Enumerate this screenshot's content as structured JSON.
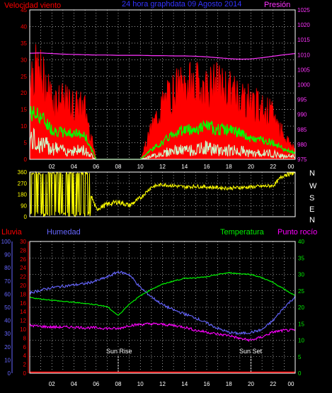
{
  "header": {
    "wind_label": "Velocidad viento",
    "title": "24 hora graphdata  09 Agosto 2014",
    "pressure_label": "Presión"
  },
  "footer_labels": {
    "rain": "Lluvia",
    "humidity": "Humedad",
    "temperature": "Temperatura",
    "dewpoint": "Punto rocío"
  },
  "markers": {
    "sunrise": "Sun Rise",
    "sunset": "Sun Set"
  },
  "direction_labels": [
    "N",
    "W",
    "S",
    "E",
    "N"
  ],
  "colors": {
    "wind_gust": "#ff0000",
    "wind_avg": "#00ff00",
    "wind_min": "#ccffcc",
    "pressure": "#ff33ff",
    "direction": "#ffff00",
    "humidity": "#6666ff",
    "temperature": "#00ee00",
    "dewpoint": "#ff00ff",
    "rain": "#ff0000",
    "grid": "#ffffff",
    "frame": "#ffffff"
  },
  "chart_data": [
    {
      "type": "line",
      "name": "wind-pressure",
      "x_ticks": [
        "02",
        "04",
        "06",
        "08",
        "10",
        "12",
        "14",
        "16",
        "18",
        "20",
        "22",
        "00"
      ],
      "x_hours": [
        0,
        1,
        2,
        3,
        4,
        5,
        6,
        7,
        8,
        9,
        10,
        11,
        12,
        13,
        14,
        15,
        16,
        17,
        18,
        19,
        20,
        21,
        22,
        23,
        24
      ],
      "y_left_ticks": [
        "0",
        "5",
        "10",
        "15",
        "20",
        "25",
        "30",
        "35",
        "40",
        "45"
      ],
      "ylim_left": [
        0,
        45
      ],
      "y_right_ticks": [
        "975",
        "980",
        "985",
        "990",
        "995",
        "1000",
        "1005",
        "1010",
        "1015",
        "1020",
        "1025"
      ],
      "ylim_right": [
        975,
        1025
      ],
      "series": [
        {
          "key": "gust",
          "values": [
            27,
            25,
            18,
            17,
            16,
            15,
            0,
            0,
            0,
            0,
            0,
            9,
            16,
            20,
            22,
            22,
            21,
            22,
            20,
            19,
            17,
            15,
            13,
            7,
            3
          ]
        },
        {
          "key": "avg",
          "values": [
            14,
            13,
            9,
            8,
            8,
            7,
            0,
            0,
            0,
            0,
            0,
            3,
            5,
            8,
            9,
            9,
            10,
            9,
            9,
            8,
            6,
            6,
            5,
            3,
            2
          ]
        },
        {
          "key": "min",
          "values": [
            7,
            5,
            4,
            3,
            3,
            3,
            0,
            0,
            0,
            0,
            0,
            1,
            2,
            3,
            3,
            3,
            4,
            3,
            3,
            3,
            2,
            2,
            2,
            1,
            1
          ]
        },
        {
          "key": "pressure",
          "values": [
            1010.5,
            1010.6,
            1010.4,
            1010.2,
            1010.1,
            1010.0,
            1009.9,
            1009.9,
            1009.8,
            1009.8,
            1009.8,
            1009.7,
            1009.7,
            1009.6,
            1009.6,
            1009.5,
            1009.3,
            1009.0,
            1008.7,
            1008.5,
            1008.6,
            1009.0,
            1009.5,
            1010.0,
            1010.4
          ]
        }
      ]
    },
    {
      "type": "line",
      "name": "wind-direction",
      "x_hours": [
        0,
        1,
        2,
        3,
        4,
        5,
        6,
        7,
        8,
        9,
        10,
        11,
        12,
        13,
        14,
        15,
        16,
        17,
        18,
        19,
        20,
        21,
        22,
        23,
        24
      ],
      "y_ticks": [
        "0",
        "90",
        "180",
        "270",
        "360"
      ],
      "ylim": [
        0,
        360
      ],
      "series": [
        {
          "key": "direction",
          "values": [
            350,
            340,
            300,
            320,
            330,
            310,
            60,
            100,
            120,
            90,
            150,
            240,
            260,
            250,
            240,
            245,
            240,
            235,
            230,
            235,
            240,
            245,
            250,
            340,
            355
          ]
        }
      ]
    },
    {
      "type": "line",
      "name": "temp-hum",
      "x_hours": [
        0,
        1,
        2,
        3,
        4,
        5,
        6,
        7,
        8,
        9,
        10,
        11,
        12,
        13,
        14,
        15,
        16,
        17,
        18,
        19,
        20,
        21,
        22,
        23,
        24
      ],
      "y_left_rain_ticks": [
        "0",
        "2",
        "4",
        "6",
        "8",
        "10",
        "12",
        "14",
        "16",
        "18",
        "20",
        "22",
        "24",
        "26",
        "28",
        "30"
      ],
      "ylim_rain": [
        0,
        30
      ],
      "y_left_hum_ticks": [
        "0",
        "10",
        "20",
        "30",
        "40",
        "50",
        "60",
        "70",
        "80",
        "90",
        "100"
      ],
      "ylim_hum": [
        0,
        100
      ],
      "y_right_ticks": [
        "0",
        "5",
        "10",
        "15",
        "20",
        "25",
        "30",
        "35",
        "40"
      ],
      "ylim_right": [
        0,
        40
      ],
      "sunrise_hour": 8.0,
      "sunset_hour": 20.0,
      "series": [
        {
          "key": "humidity",
          "values": [
            61,
            63,
            65,
            66,
            67,
            68,
            70,
            73,
            77,
            75,
            65,
            58,
            52,
            48,
            45,
            42,
            38,
            34,
            31,
            30,
            31,
            33,
            40,
            50,
            58
          ]
        },
        {
          "key": "temperature",
          "values": [
            23.0,
            22.5,
            22.2,
            21.8,
            21.5,
            21.2,
            20.8,
            20.2,
            17.5,
            21.0,
            23.5,
            25.5,
            27.0,
            28.0,
            28.8,
            29.0,
            29.2,
            30.0,
            30.5,
            30.2,
            30.0,
            29.0,
            27.5,
            25.5,
            23.5
          ]
        },
        {
          "key": "dewpoint",
          "values": [
            14.5,
            14.2,
            14.0,
            14.0,
            14.0,
            13.8,
            13.8,
            13.6,
            13.5,
            14.5,
            14.8,
            15.0,
            14.8,
            14.5,
            14.0,
            13.0,
            12.5,
            11.8,
            11.5,
            10.5,
            10.0,
            11.0,
            12.5,
            13.0,
            13.0
          ]
        },
        {
          "key": "rain",
          "values": [
            0,
            0,
            0,
            0,
            0,
            0,
            0,
            0,
            0,
            0,
            0,
            0,
            0,
            0,
            0,
            0,
            0,
            0,
            0,
            0,
            0,
            0,
            0,
            0,
            0
          ]
        }
      ]
    }
  ]
}
